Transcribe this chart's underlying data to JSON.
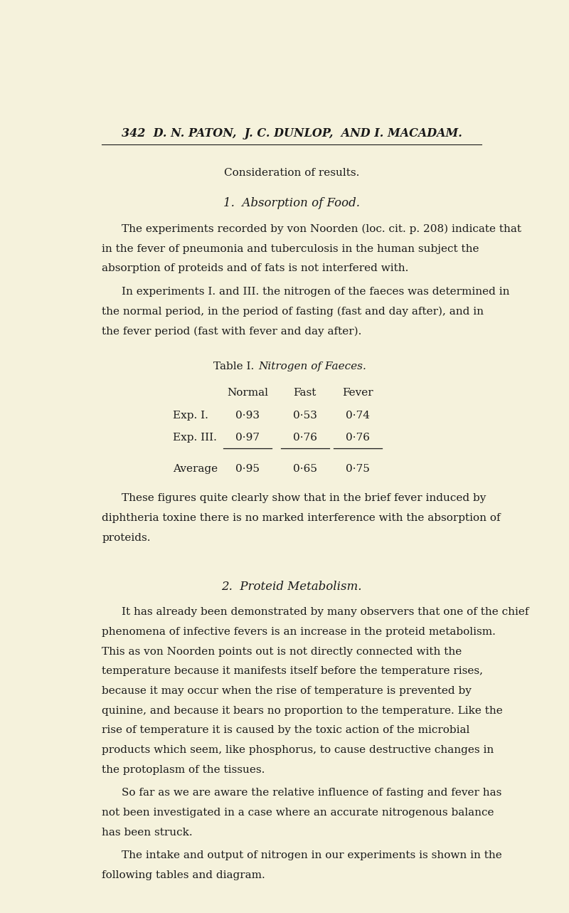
{
  "bg_color": "#f5f2dc",
  "page_number_line": "342  D. N. PATON,  J. C. DUNLOP,  AND I. MACADAM.",
  "section_heading": "Consideration of results.",
  "section1_heading": "1.  Absorption of Food.",
  "para1": "The experiments recorded by von Noorden (loc. cit. p. 208) indicate that in the fever of pneumonia and tuberculosis in the human subject the absorption of proteids and of fats is not interfered with.",
  "para2": "In experiments I. and III. the nitrogen of the faeces was determined in the normal period, in the period of fasting (fast and day after), and in the fever period (fast with fever and day after).",
  "table_heading_roman": "Table I.",
  "table_heading_italic": "Nitrogen of Faeces.",
  "table_col_headers": [
    "Normal",
    "Fast",
    "Fever"
  ],
  "table_rows": [
    [
      "Exp. I.",
      "0·93",
      "0·53",
      "0·74"
    ],
    [
      "Exp. III.",
      "0·97",
      "0·76",
      "0·76"
    ]
  ],
  "table_avg_row": [
    "Average",
    "0·95",
    "0·65",
    "0·75"
  ],
  "para3": "These figures quite clearly show that in the brief fever induced by diphtheria toxine there is no marked interference with the absorption of proteids.",
  "section2_heading": "2.  Proteid Metabolism.",
  "para4": "It has already been demonstrated by many observers that one of the chief phenomena of infective fevers is an increase in the proteid metabolism.  This as von Noorden points out is not directly connected with the temperature because it manifests itself before the temperature rises, because it may occur when the rise of temperature is prevented by quinine, and because it bears no proportion to the temperature.  Like the rise of temperature it is caused by the toxic action of the microbial products which seem, like phosphorus, to cause destructive changes in the protoplasm of the tissues.",
  "para5": "So far as we are aware the relative influence of fasting and fever has not been investigated in a case where an accurate nitrogenous balance has been struck.",
  "para6": "The intake and output of nitrogen in our experiments is shown in the following tables and diagram."
}
